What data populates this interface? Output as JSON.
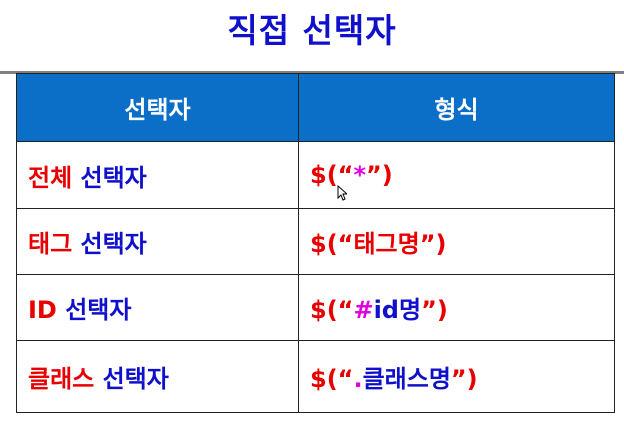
{
  "title": "직접 선택자",
  "table": {
    "headers": [
      "선택자",
      "형식"
    ],
    "rows": [
      {
        "selector_em": "전체",
        "selector_rest": " 선택자",
        "format_prefix": "$(“",
        "format_highlight": "*",
        "format_main": "",
        "format_suffix": "”)"
      },
      {
        "selector_em": "태그",
        "selector_rest": " 선택자",
        "format_prefix": "$(“",
        "format_highlight": "",
        "format_main": "태그명",
        "format_suffix": "”)"
      },
      {
        "selector_em": "ID",
        "selector_rest": " 선택자",
        "format_prefix": "$(“",
        "format_highlight": "#",
        "format_main": "id명",
        "format_suffix": "”)"
      },
      {
        "selector_em": "클래스",
        "selector_rest": " 선택자",
        "format_prefix": "$(“",
        "format_highlight": ".",
        "format_main": "클래스명",
        "format_suffix": "”)"
      }
    ]
  },
  "colors": {
    "title": "#1010cc",
    "header_bg": "#0b6fc8",
    "emphasis_red": "#e80000",
    "text_blue": "#1010cc",
    "highlight_magenta": "#e000e0"
  }
}
